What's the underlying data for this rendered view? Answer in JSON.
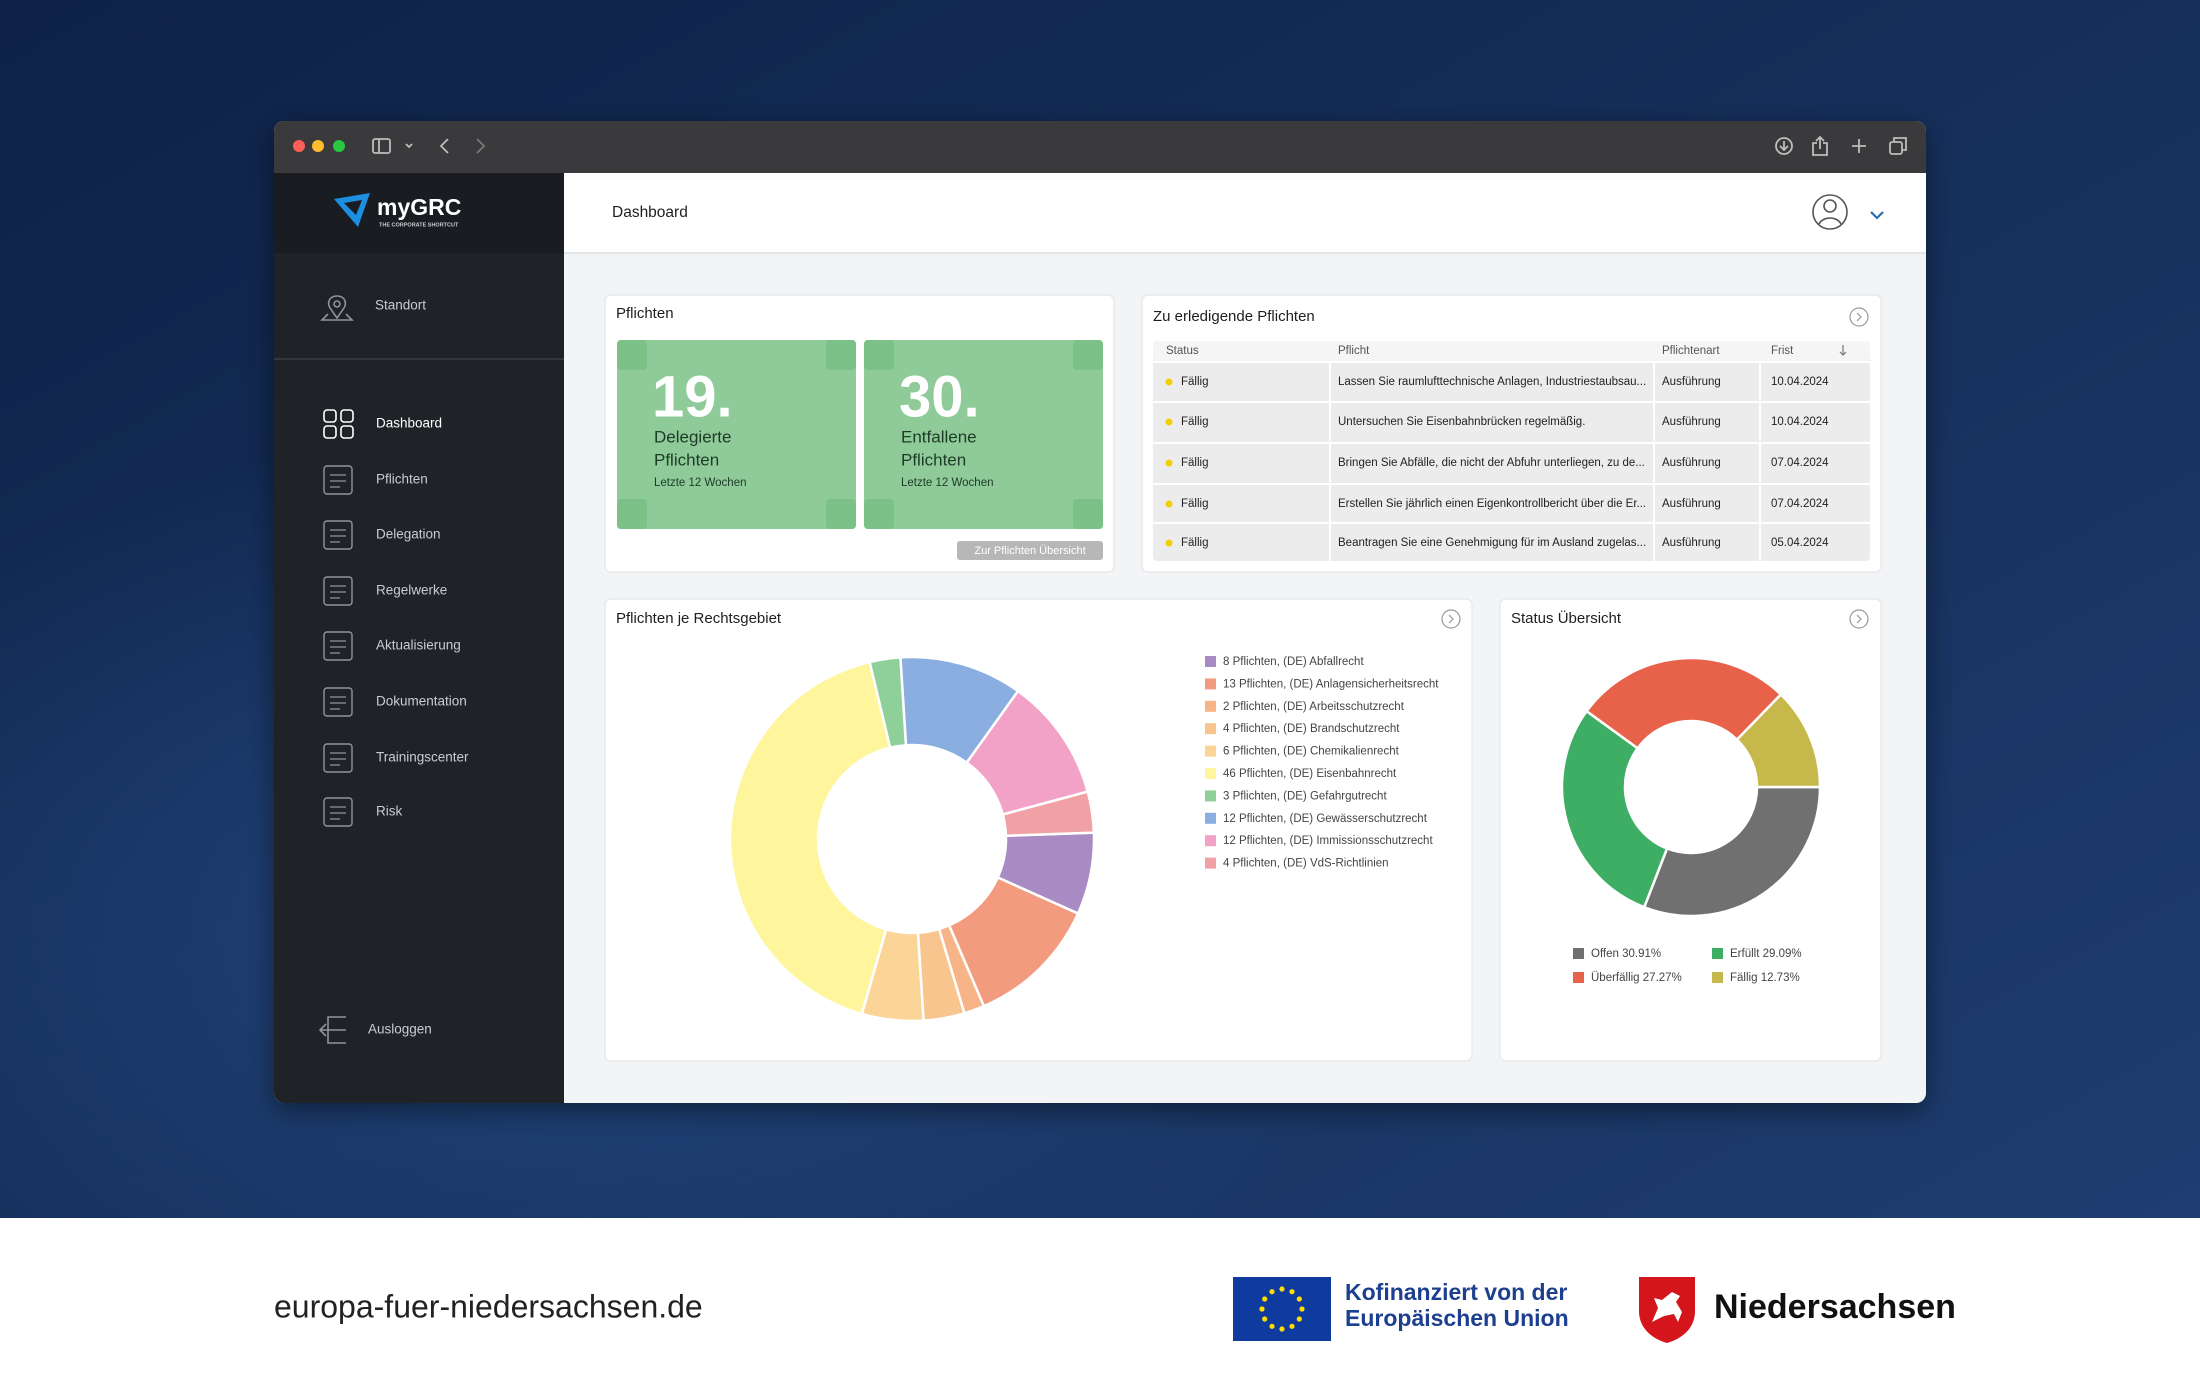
{
  "sidebar": {
    "logo": "myGRC",
    "logo_tagline": "THE CORPORATE SHORTCUT",
    "location": "Standort",
    "menu": [
      "Dashboard",
      "Pflichten",
      "Delegation",
      "Regelwerke",
      "Aktualisierung",
      "Dokumentation",
      "Trainingscenter",
      "Risk"
    ],
    "logout": "Ausloggen"
  },
  "header": {
    "title": "Dashboard"
  },
  "duties_card": {
    "title": "Pflichten",
    "tiles": [
      {
        "value": "19.",
        "label": [
          "Delegierte",
          "Pflichten"
        ],
        "period": "Letzte 12 Wochen"
      },
      {
        "value": "30.",
        "label": [
          "Entfallene",
          "Pflichten"
        ],
        "period": "Letzte 12 Wochen"
      }
    ],
    "button": "Zur Pflichten Übersicht"
  },
  "todo_table": {
    "title": "Zu erledigende Pflichten",
    "columns": [
      "Status",
      "Pflicht",
      "Pflichtenart",
      "Frist"
    ],
    "rows": [
      [
        "Fällig",
        "Lassen Sie raumlufttechnische Anlagen, Industriestaubsau...",
        "Ausführung",
        "10.04.2024"
      ],
      [
        "Fällig",
        "Untersuchen Sie Eisenbahnbrücken regelmäßig.",
        "Ausführung",
        "10.04.2024"
      ],
      [
        "Fällig",
        "Bringen Sie Abfälle, die nicht der Abfuhr unterliegen, zu de...",
        "Ausführung",
        "07.04.2024"
      ],
      [
        "Fällig",
        "Erstellen Sie jährlich einen Eigenkontrollbericht über die Er...",
        "Ausführung",
        "07.04.2024"
      ],
      [
        "Fällig",
        "Beantragen Sie eine Genehmigung für im Ausland zugelas...",
        "Ausführung",
        "05.04.2024"
      ]
    ]
  },
  "legal_area_chart": {
    "type": "pie",
    "title": "Pflichten je Rechtsgebiet",
    "categories": [
      "(DE) Abfallrecht",
      "(DE) Anlagensicherheitsrecht",
      "(DE) Arbeitsschutzrecht",
      "(DE) Brandschutzrecht",
      "(DE) Chemikalienrecht",
      "(DE) Eisenbahnrecht",
      "(DE) Gefahrgutrecht",
      "(DE) Gewässerschutzrecht",
      "(DE) Immissionsschutzrecht",
      "(DE) VdS-Richtlinien"
    ],
    "values": [
      8,
      13,
      2,
      4,
      6,
      46,
      3,
      12,
      12,
      4
    ],
    "value_labels": [
      "8 Pflichten,",
      "13 Pflichten,",
      "2 Pflichten,",
      "4 Pflichten,",
      "6 Pflichten,",
      "46 Pflichten,",
      "3 Pflichten,",
      "12 Pflichten,",
      "12 Pflichten,",
      "4 Pflichten,"
    ],
    "colors": [
      "#a98bc4",
      "#f39b7e",
      "#f6b487",
      "#f9c58e",
      "#fbd597",
      "#fff59c",
      "#8fcf9a",
      "#8aaee0",
      "#f2a1c7",
      "#f1a0a5"
    ]
  },
  "status_chart": {
    "type": "pie",
    "title": "Status Übersicht",
    "categories": [
      "Offen",
      "Erfüllt",
      "Überfällig",
      "Fällig"
    ],
    "values": [
      30.91,
      29.09,
      27.27,
      12.73
    ],
    "value_labels": [
      "30.91%",
      "29.09%",
      "27.27%",
      "12.73%"
    ],
    "colors": [
      "#707070",
      "#3dae64",
      "#e8624a",
      "#c6b84a"
    ]
  },
  "footer": {
    "website": "europa-fuer-niedersachsen.de",
    "eu_text": [
      "Kofinanziert von der",
      "Europäischen Union"
    ],
    "state": "Niedersachsen"
  }
}
